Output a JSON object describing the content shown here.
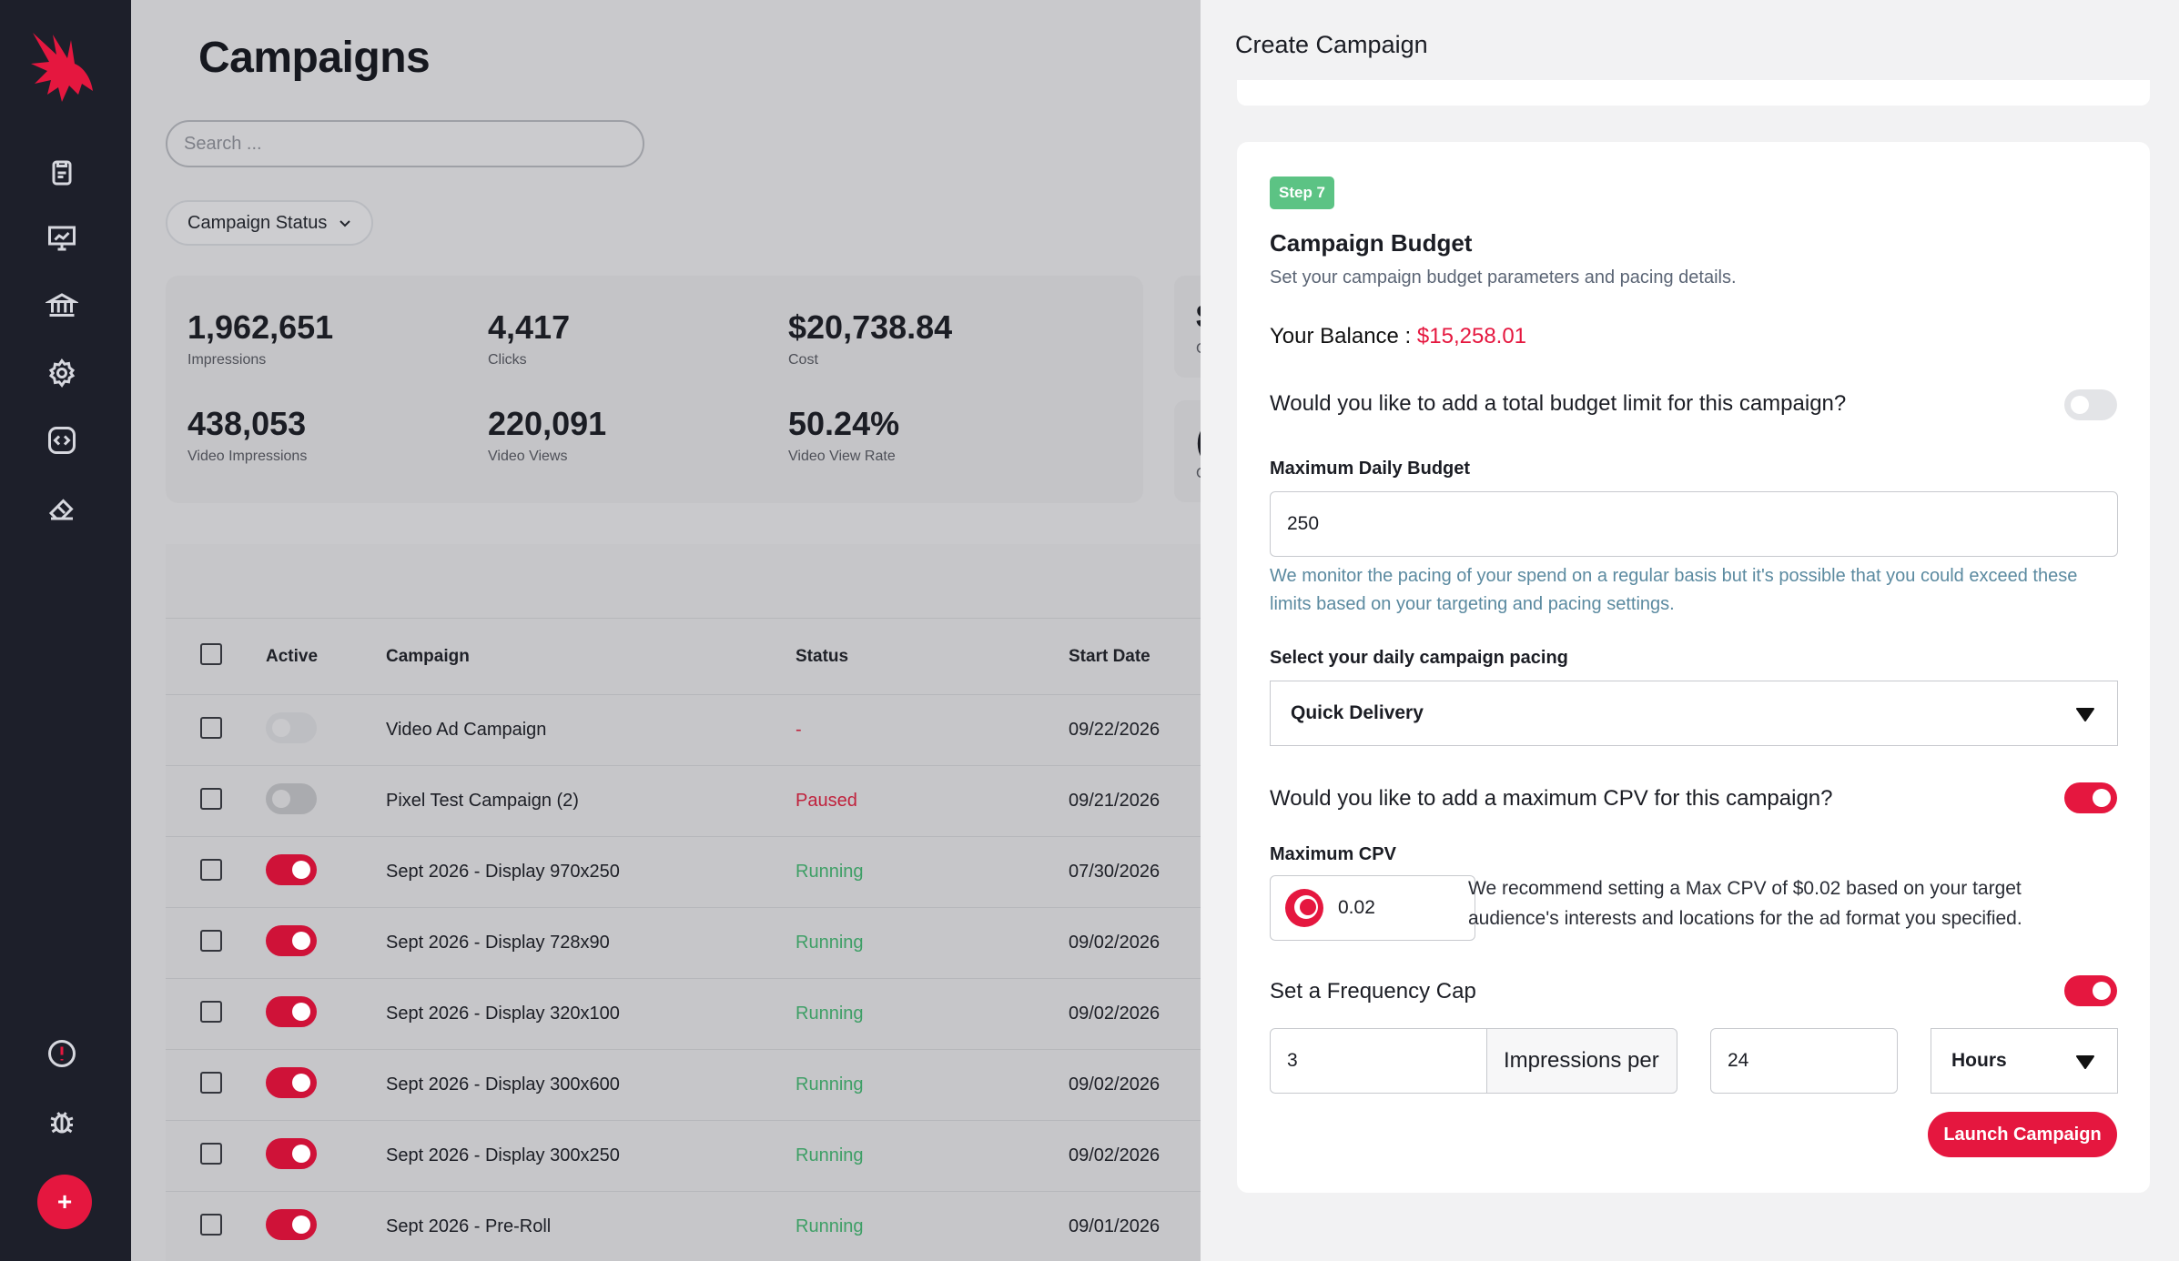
{
  "colors": {
    "accent": "#e5173f",
    "sidebar": "#1d1f2a",
    "running": "#3e9f66",
    "paused": "#c0213c",
    "step_badge": "#5cc384"
  },
  "sidebar": {
    "logo_icon": "eagle-logo",
    "items": [
      {
        "icon": "clipboard-icon"
      },
      {
        "icon": "presentation-chart-icon"
      },
      {
        "icon": "bank-icon"
      },
      {
        "icon": "gear-icon"
      },
      {
        "icon": "code-icon"
      },
      {
        "icon": "eraser-icon"
      }
    ],
    "bottom_items": [
      {
        "icon": "alert-icon"
      },
      {
        "icon": "bug-icon"
      }
    ],
    "fab_label": "+"
  },
  "main": {
    "title": "Campaigns",
    "search_placeholder": "Search ...",
    "status_filter_label": "Campaign Status",
    "stats": [
      {
        "value": "1,962,651",
        "label": "Impressions"
      },
      {
        "value": "4,417",
        "label": "Clicks"
      },
      {
        "value": "$20,738.84",
        "label": "Cost"
      },
      {
        "value": "438,053",
        "label": "Video Impressions"
      },
      {
        "value": "220,091",
        "label": "Video Views"
      },
      {
        "value": "50.24%",
        "label": "Video View Rate"
      }
    ],
    "partial_card_1": {
      "value": "$",
      "label": "C"
    },
    "partial_card_2": {
      "value": "(",
      "label": "C"
    },
    "table": {
      "headers": {
        "active": "Active",
        "campaign": "Campaign",
        "status": "Status",
        "start_date": "Start Date"
      },
      "rows": [
        {
          "active": "disabled",
          "name": "Video Ad Campaign",
          "status": "-",
          "status_type": "dash",
          "start": "09/22/2026"
        },
        {
          "active": "off",
          "name": "Pixel Test Campaign (2)",
          "status": "Paused",
          "status_type": "paused",
          "start": "09/21/2026"
        },
        {
          "active": "on",
          "name": "Sept 2026 - Display 970x250",
          "status": "Running",
          "status_type": "run",
          "start": "07/30/2026"
        },
        {
          "active": "on",
          "name": "Sept 2026 - Display 728x90",
          "status": "Running",
          "status_type": "run",
          "start": "09/02/2026"
        },
        {
          "active": "on",
          "name": "Sept 2026 - Display 320x100",
          "status": "Running",
          "status_type": "run",
          "start": "09/02/2026"
        },
        {
          "active": "on",
          "name": "Sept 2026 - Display 300x600",
          "status": "Running",
          "status_type": "run",
          "start": "09/02/2026"
        },
        {
          "active": "on",
          "name": "Sept 2026 - Display 300x250",
          "status": "Running",
          "status_type": "run",
          "start": "09/02/2026"
        },
        {
          "active": "on",
          "name": "Sept 2026 - Pre-Roll",
          "status": "Running",
          "status_type": "run",
          "start": "09/01/2026"
        }
      ]
    }
  },
  "drawer": {
    "title": "Create Campaign",
    "step_badge": "Step 7",
    "card_title": "Campaign Budget",
    "card_subtitle": "Set your campaign budget parameters and pacing details.",
    "balance_label": "Your Balance : ",
    "balance_value": "$15,258.01",
    "total_budget_question": "Would you like to add a total budget limit for this campaign?",
    "total_budget_enabled": false,
    "daily_budget_label": "Maximum Daily Budget",
    "daily_budget_value": "250",
    "daily_budget_help": "We monitor the pacing of your spend on a regular basis but it's possible that you could exceed these limits based on your targeting and pacing settings.",
    "pacing_label": "Select your daily campaign pacing",
    "pacing_value": "Quick Delivery",
    "cpv_question": "Would you like to add a maximum CPV for this campaign?",
    "cpv_enabled": true,
    "max_cpv_label": "Maximum CPV",
    "max_cpv_value": "0.02",
    "max_cpv_icon": "currency-coin-icon",
    "cpv_recommendation": "We recommend setting a Max CPV of $0.02 based on your target audience's interests and locations for the ad format you specified.",
    "frequency_cap_label": "Set a Frequency Cap",
    "frequency_cap_enabled": true,
    "frequency_impressions": "3",
    "frequency_addon": "Impressions per",
    "frequency_period_value": "24",
    "frequency_unit": "Hours",
    "launch_label": "Launch Campaign"
  }
}
